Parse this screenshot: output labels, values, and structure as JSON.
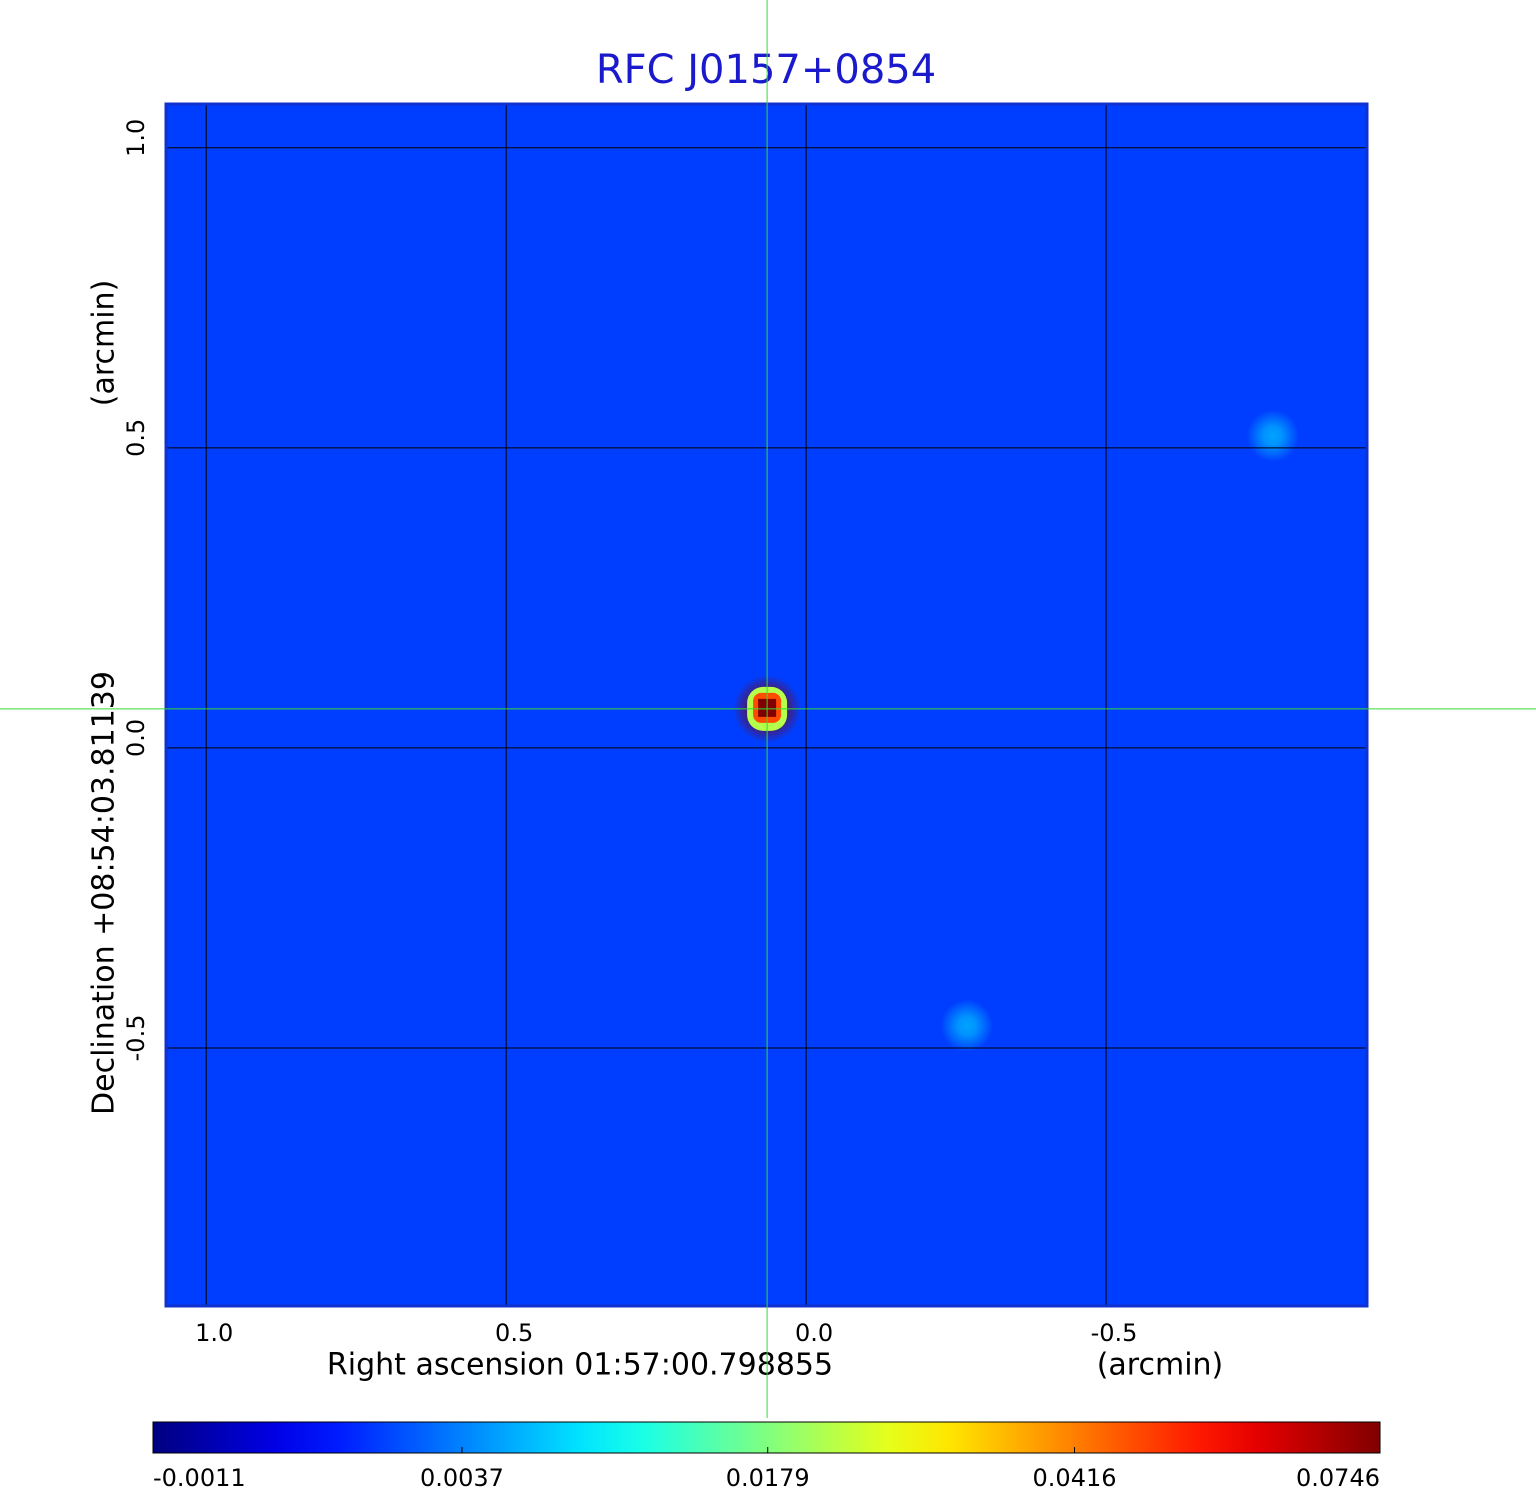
{
  "chart_data": {
    "type": "image",
    "title": "RFC J0157+0854",
    "x_label": "Right ascension  01:57:00.798855",
    "x_unit": "(arcmin)",
    "y_label": "Declination  +08:54:03.81139",
    "y_unit": "(arcmin)",
    "xlim": [
      1.067,
      -0.935
    ],
    "ylim": [
      -0.93,
      1.073
    ],
    "xticks": [
      {
        "value": 1,
        "label": "1.0"
      },
      0.5,
      {
        "value": 0,
        "label": "0.0"
      },
      -0.5
    ],
    "yticks": [
      -0.5,
      {
        "value": 0,
        "label": "0.0"
      },
      0.5,
      {
        "value": 1,
        "label": "1.0"
      }
    ],
    "grid": true,
    "colormap": "jet",
    "color_scale": "sqrt",
    "clim": [
      -0.0011,
      0.0746
    ],
    "cticks": [
      -0.0011,
      0.0037,
      0.0179,
      0.0416,
      0.0746
    ],
    "background_value": 0.0015,
    "sources": {
      "x": [
        0.065,
        -0.778,
        -0.268
      ],
      "y": [
        0.065,
        0.52,
        -0.463
      ],
      "values": [
        0.0746,
        0.005,
        0.005
      ]
    }
  }
}
